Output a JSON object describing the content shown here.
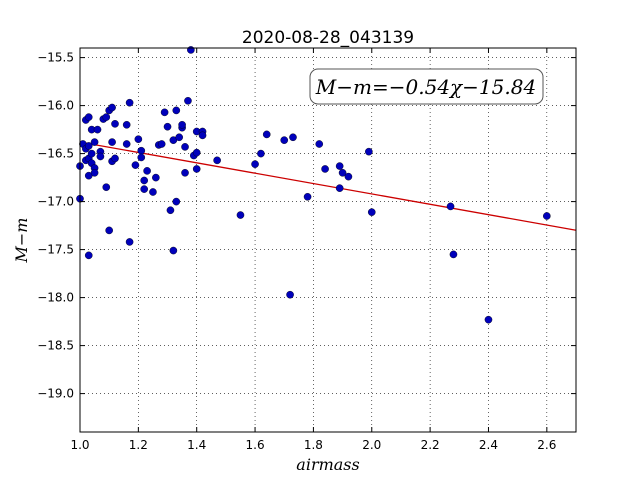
{
  "chart_data": {
    "type": "scatter",
    "title": "2020-08-28_043139",
    "xlabel": "airmass",
    "ylabel": "M−m",
    "xlim": [
      1.0,
      2.7
    ],
    "ylim": [
      -19.4,
      -15.4
    ],
    "y_inverted": true,
    "grid": true,
    "x_ticks": [
      1.0,
      1.2,
      1.4,
      1.6,
      1.8,
      2.0,
      2.2,
      2.4,
      2.6
    ],
    "x_tick_labels": [
      "1.0",
      "1.2",
      "1.4",
      "1.6",
      "1.8",
      "2.0",
      "2.2",
      "2.4",
      "2.6"
    ],
    "y_ticks": [
      -15.5,
      -16.0,
      -16.5,
      -17.0,
      -17.5,
      -18.0,
      -18.5,
      -19.0
    ],
    "y_tick_labels": [
      "−15.5",
      "−16.0",
      "−16.5",
      "−17.0",
      "−17.5",
      "−18.0",
      "−18.5",
      "−19.0"
    ],
    "annotation": "M−m=−0.54χ−15.84",
    "fit": {
      "slope": -0.54,
      "intercept": -15.84,
      "color": "#cc0000"
    },
    "point_color": "#0000bb",
    "points": [
      [
        1.0,
        -16.63
      ],
      [
        1.0,
        -16.97
      ],
      [
        1.01,
        -16.4
      ],
      [
        1.02,
        -16.15
      ],
      [
        1.02,
        -16.45
      ],
      [
        1.02,
        -16.57
      ],
      [
        1.03,
        -16.12
      ],
      [
        1.03,
        -16.42
      ],
      [
        1.03,
        -16.55
      ],
      [
        1.03,
        -16.73
      ],
      [
        1.03,
        -17.56
      ],
      [
        1.04,
        -16.25
      ],
      [
        1.04,
        -16.5
      ],
      [
        1.04,
        -16.6
      ],
      [
        1.05,
        -16.38
      ],
      [
        1.05,
        -16.65
      ],
      [
        1.05,
        -16.7
      ],
      [
        1.06,
        -16.25
      ],
      [
        1.07,
        -16.48
      ],
      [
        1.07,
        -16.53
      ],
      [
        1.08,
        -16.14
      ],
      [
        1.09,
        -16.12
      ],
      [
        1.09,
        -16.85
      ],
      [
        1.1,
        -16.05
      ],
      [
        1.1,
        -17.3
      ],
      [
        1.11,
        -16.02
      ],
      [
        1.11,
        -16.38
      ],
      [
        1.11,
        -16.58
      ],
      [
        1.12,
        -16.55
      ],
      [
        1.12,
        -16.19
      ],
      [
        1.16,
        -16.2
      ],
      [
        1.16,
        -16.4
      ],
      [
        1.17,
        -15.97
      ],
      [
        1.17,
        -17.42
      ],
      [
        1.19,
        -16.62
      ],
      [
        1.2,
        -16.35
      ],
      [
        1.21,
        -16.47
      ],
      [
        1.21,
        -16.54
      ],
      [
        1.22,
        -16.78
      ],
      [
        1.22,
        -16.87
      ],
      [
        1.23,
        -16.68
      ],
      [
        1.25,
        -16.9
      ],
      [
        1.26,
        -16.75
      ],
      [
        1.27,
        -16.41
      ],
      [
        1.28,
        -16.4
      ],
      [
        1.29,
        -16.07
      ],
      [
        1.3,
        -16.22
      ],
      [
        1.31,
        -17.09
      ],
      [
        1.32,
        -16.36
      ],
      [
        1.32,
        -17.51
      ],
      [
        1.33,
        -17.0
      ],
      [
        1.33,
        -16.05
      ],
      [
        1.34,
        -16.33
      ],
      [
        1.35,
        -16.23
      ],
      [
        1.35,
        -16.2
      ],
      [
        1.36,
        -16.43
      ],
      [
        1.36,
        -16.7
      ],
      [
        1.37,
        -15.95
      ],
      [
        1.38,
        -15.42
      ],
      [
        1.39,
        -16.52
      ],
      [
        1.4,
        -16.49
      ],
      [
        1.4,
        -16.27
      ],
      [
        1.4,
        -16.66
      ],
      [
        1.42,
        -16.27
      ],
      [
        1.42,
        -16.31
      ],
      [
        1.47,
        -16.57
      ],
      [
        1.55,
        -17.14
      ],
      [
        1.6,
        -16.61
      ],
      [
        1.62,
        -16.5
      ],
      [
        1.64,
        -16.3
      ],
      [
        1.7,
        -16.36
      ],
      [
        1.72,
        -17.97
      ],
      [
        1.73,
        -16.33
      ],
      [
        1.78,
        -16.95
      ],
      [
        1.82,
        -16.4
      ],
      [
        1.84,
        -16.66
      ],
      [
        1.89,
        -16.63
      ],
      [
        1.89,
        -16.86
      ],
      [
        1.9,
        -16.7
      ],
      [
        1.92,
        -16.74
      ],
      [
        1.99,
        -16.48
      ],
      [
        2.0,
        -17.11
      ],
      [
        2.27,
        -17.05
      ],
      [
        2.28,
        -17.55
      ],
      [
        2.4,
        -18.23
      ],
      [
        2.6,
        -17.15
      ]
    ]
  }
}
